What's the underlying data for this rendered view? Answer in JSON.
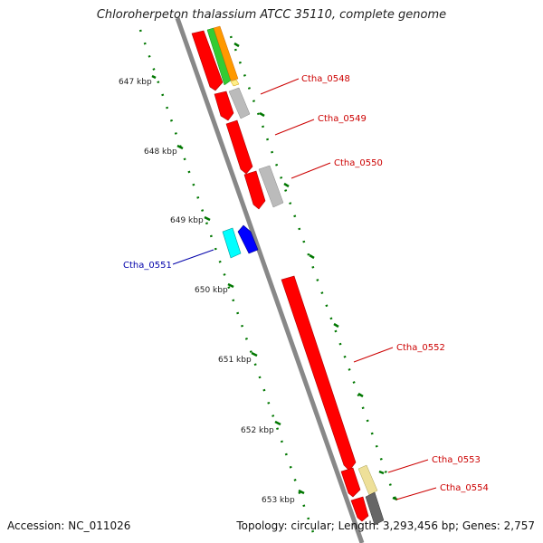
{
  "title": "Chloroherpeton thalassium ATCC 35110, complete genome",
  "accession_text": "Accession: NC_011026",
  "summary_text": "Topology: circular; Length: 3,293,456 bp; Genes: 2,757",
  "ticks": [
    "647 kbp",
    "648 kbp",
    "649 kbp",
    "650 kbp",
    "651 kbp",
    "652 kbp",
    "653 kbp"
  ],
  "gene_labels": [
    {
      "text": "Ctha_0548",
      "color": "#cc0000"
    },
    {
      "text": "Ctha_0549",
      "color": "#cc0000"
    },
    {
      "text": "Ctha_0550",
      "color": "#cc0000"
    },
    {
      "text": "Ctha_0551",
      "color": "#0000aa"
    },
    {
      "text": "Ctha_0552",
      "color": "#cc0000"
    },
    {
      "text": "Ctha_0553",
      "color": "#cc0000"
    },
    {
      "text": "Ctha_0554",
      "color": "#cc0000"
    }
  ],
  "colors": {
    "backbone": "#888888",
    "forward_cds": "#ff0000",
    "reverse_cds": "#0000ff",
    "gc_track": "#007700",
    "tick_label": "#222222"
  }
}
